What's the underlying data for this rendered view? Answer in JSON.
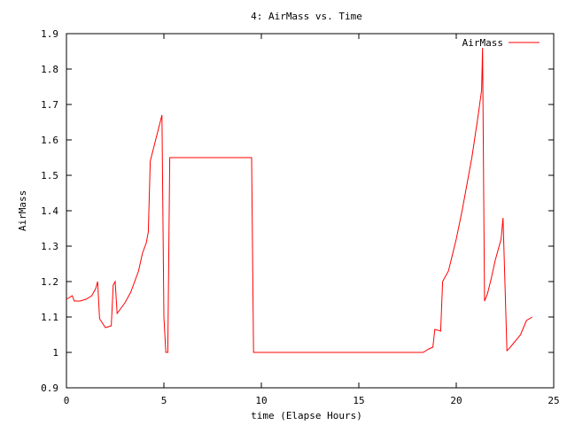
{
  "chart_data": {
    "type": "line",
    "title": "4: AirMass vs. Time",
    "xlabel": "time (Elapse Hours)",
    "ylabel": "AirMass",
    "xlim": [
      0,
      25
    ],
    "ylim": [
      0.9,
      1.9
    ],
    "x_ticks": [
      0,
      5,
      10,
      15,
      20,
      25
    ],
    "x_tick_labels": [
      "0",
      "5",
      "10",
      "15",
      "20",
      "25"
    ],
    "y_ticks": [
      0.9,
      1.0,
      1.1,
      1.2,
      1.3,
      1.4,
      1.5,
      1.6,
      1.7,
      1.8,
      1.9
    ],
    "y_tick_labels": [
      "0.9",
      "1",
      "1.1",
      "1.2",
      "1.3",
      "1.4",
      "1.5",
      "1.6",
      "1.7",
      "1.8",
      "1.9"
    ],
    "grid": false,
    "legend_position": "top-right",
    "series": [
      {
        "name": "AirMass",
        "color": "#ff0000",
        "x": [
          0.0,
          0.3,
          0.4,
          0.7,
          1.0,
          1.3,
          1.5,
          1.6,
          1.7,
          2.0,
          2.3,
          2.4,
          2.5,
          2.6,
          3.0,
          3.3,
          3.7,
          3.9,
          4.1,
          4.2,
          4.3,
          4.9,
          5.0,
          5.1,
          5.2,
          5.3,
          9.5,
          9.6,
          12.0,
          15.0,
          18.3,
          18.6,
          18.8,
          18.9,
          19.2,
          19.3,
          19.6,
          20.0,
          20.3,
          20.8,
          21.1,
          21.3,
          21.35,
          21.45,
          21.6,
          21.8,
          22.0,
          22.3,
          22.4,
          22.6,
          22.7,
          23.0,
          23.3,
          23.6,
          23.9
        ],
        "y": [
          1.15,
          1.16,
          1.145,
          1.145,
          1.15,
          1.16,
          1.18,
          1.2,
          1.095,
          1.07,
          1.075,
          1.19,
          1.2,
          1.11,
          1.14,
          1.17,
          1.23,
          1.28,
          1.31,
          1.34,
          1.54,
          1.67,
          1.1,
          1.0,
          1.0,
          1.55,
          1.55,
          1.0,
          1.0,
          1.0,
          1.0,
          1.01,
          1.015,
          1.065,
          1.06,
          1.2,
          1.23,
          1.32,
          1.4,
          1.55,
          1.66,
          1.74,
          1.86,
          1.145,
          1.165,
          1.21,
          1.26,
          1.32,
          1.38,
          1.005,
          1.01,
          1.03,
          1.05,
          1.09,
          1.1
        ]
      }
    ]
  }
}
